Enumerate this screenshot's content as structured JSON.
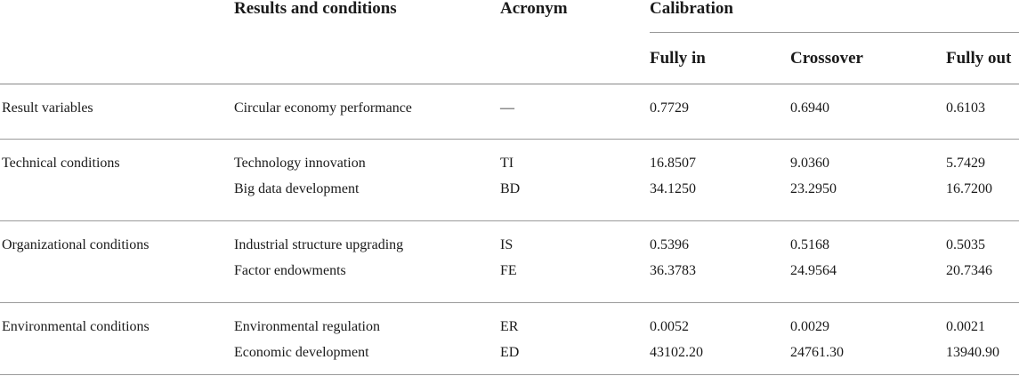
{
  "table": {
    "headers": {
      "results_and_conditions": "Results and conditions",
      "acronym": "Acronym",
      "calibration": "Calibration",
      "fully_in": "Fully in",
      "crossover": "Crossover",
      "fully_out": "Fully out"
    },
    "groups": [
      {
        "category": "Result variables",
        "rows": [
          {
            "variable": "Circular economy performance",
            "acronym": "—",
            "fully_in": "0.7729",
            "crossover": "0.6940",
            "fully_out": "0.6103"
          }
        ]
      },
      {
        "category": "Technical conditions",
        "rows": [
          {
            "variable": "Technology innovation",
            "acronym": "TI",
            "fully_in": "16.8507",
            "crossover": "9.0360",
            "fully_out": "5.7429"
          },
          {
            "variable": "Big data development",
            "acronym": "BD",
            "fully_in": "34.1250",
            "crossover": "23.2950",
            "fully_out": "16.7200"
          }
        ]
      },
      {
        "category": "Organizational conditions",
        "rows": [
          {
            "variable": "Industrial structure upgrading",
            "acronym": "IS",
            "fully_in": "0.5396",
            "crossover": "0.5168",
            "fully_out": "0.5035"
          },
          {
            "variable": "Factor endowments",
            "acronym": "FE",
            "fully_in": "36.3783",
            "crossover": "24.9564",
            "fully_out": "20.7346"
          }
        ]
      },
      {
        "category": "Environmental conditions",
        "rows": [
          {
            "variable": "Environmental regulation",
            "acronym": "ER",
            "fully_in": "0.0052",
            "crossover": "0.0029",
            "fully_out": "0.0021"
          },
          {
            "variable": "Economic development",
            "acronym": "ED",
            "fully_in": "43102.20",
            "crossover": "24761.30",
            "fully_out": "13940.90"
          }
        ]
      }
    ]
  }
}
